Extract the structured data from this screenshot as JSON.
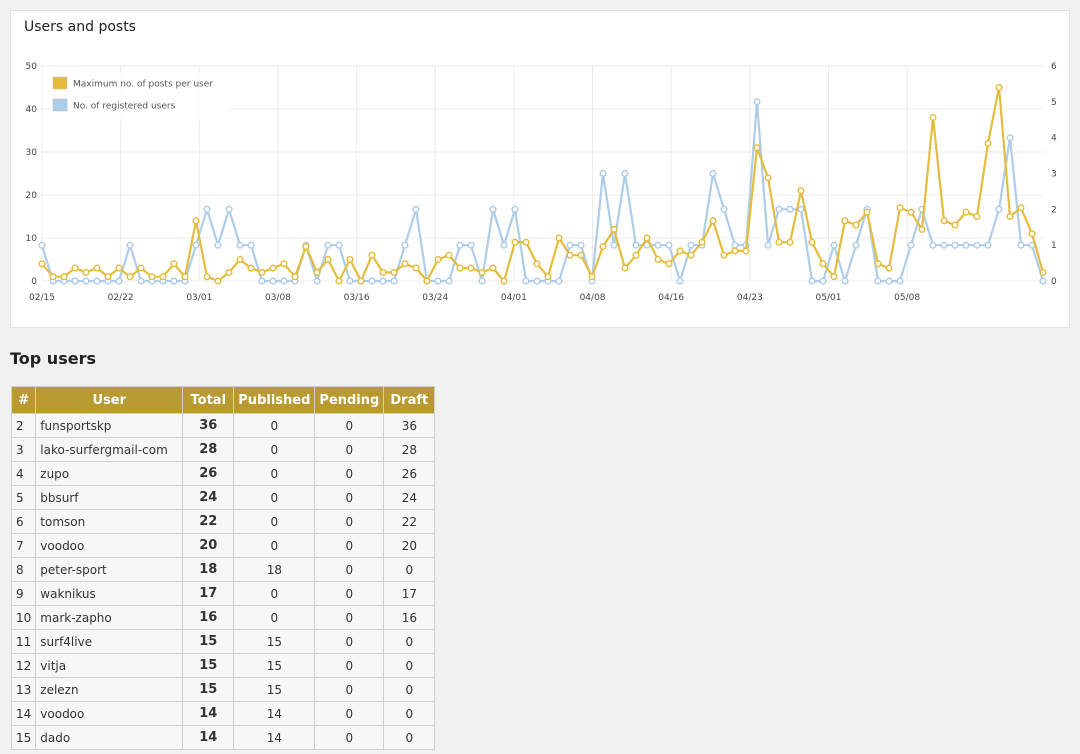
{
  "panel": {
    "title": "Users and posts"
  },
  "chart_data": {
    "type": "line",
    "title": "Users and posts",
    "x_tick_labels": [
      "02/15",
      "02/22",
      "03/01",
      "03/08",
      "03/16",
      "03/24",
      "04/01",
      "04/08",
      "04/16",
      "04/23",
      "05/01",
      "05/08"
    ],
    "y_left": {
      "ticks": [
        0,
        10,
        20,
        30,
        40,
        50
      ],
      "range": [
        0,
        50
      ]
    },
    "y_right": {
      "ticks": [
        0,
        1,
        2,
        3,
        4,
        5,
        6
      ],
      "range": [
        0,
        6
      ]
    },
    "legend_position": "top-left",
    "series": [
      {
        "name": "Maximum no. of posts per user",
        "color": "#e6bc3c",
        "axis": "left",
        "values": [
          4,
          1,
          1,
          3,
          2,
          3,
          1,
          3,
          1,
          3,
          1,
          1,
          4,
          1,
          14,
          1,
          0,
          2,
          5,
          3,
          2,
          3,
          4,
          1,
          8,
          2,
          5,
          0,
          5,
          0,
          6,
          2,
          2,
          4,
          3,
          0,
          5,
          6,
          3,
          3,
          2,
          3,
          0,
          9,
          9,
          4,
          1,
          10,
          6,
          6,
          1,
          8,
          12,
          3,
          6,
          10,
          5,
          4,
          7,
          6,
          9,
          14,
          6,
          7,
          7,
          31,
          24,
          9,
          9,
          21,
          9,
          4,
          1,
          14,
          13,
          16,
          4,
          3,
          17,
          16,
          12,
          38,
          14,
          13,
          16,
          15,
          32,
          45,
          15,
          17,
          11,
          2
        ]
      },
      {
        "name": "No. of registered users",
        "color": "#aecde8",
        "axis": "right",
        "values": [
          1,
          0,
          0,
          0,
          0,
          0,
          0,
          0,
          1,
          0,
          0,
          0,
          0,
          0,
          1,
          2,
          1,
          2,
          1,
          1,
          0,
          0,
          0,
          0,
          1,
          0,
          1,
          1,
          0,
          0,
          0,
          0,
          0,
          1,
          2,
          0,
          0,
          0,
          1,
          1,
          0,
          2,
          1,
          2,
          0,
          0,
          0,
          0,
          1,
          1,
          0,
          3,
          1,
          3,
          1,
          1,
          1,
          1,
          0,
          1,
          1,
          3,
          2,
          1,
          1,
          5,
          1,
          2,
          2,
          2,
          0,
          0,
          1,
          0,
          1,
          2,
          0,
          0,
          0,
          1,
          2,
          1,
          1,
          1,
          1,
          1,
          1,
          2,
          4,
          1,
          1,
          0
        ]
      }
    ]
  },
  "top_users": {
    "title": "Top users",
    "headers": [
      "#",
      "User",
      "Total",
      "Published",
      "Pending",
      "Draft"
    ],
    "rows": [
      {
        "rank": "2",
        "user": "funsportskp",
        "total": "36",
        "published": "0",
        "pending": "0",
        "draft": "36"
      },
      {
        "rank": "3",
        "user": "lako-surfergmail-com",
        "total": "28",
        "published": "0",
        "pending": "0",
        "draft": "28"
      },
      {
        "rank": "4",
        "user": "zupo",
        "total": "26",
        "published": "0",
        "pending": "0",
        "draft": "26"
      },
      {
        "rank": "5",
        "user": "bbsurf",
        "total": "24",
        "published": "0",
        "pending": "0",
        "draft": "24"
      },
      {
        "rank": "6",
        "user": "tomson",
        "total": "22",
        "published": "0",
        "pending": "0",
        "draft": "22"
      },
      {
        "rank": "7",
        "user": "voodoo",
        "total": "20",
        "published": "0",
        "pending": "0",
        "draft": "20"
      },
      {
        "rank": "8",
        "user": "peter-sport",
        "total": "18",
        "published": "18",
        "pending": "0",
        "draft": "0"
      },
      {
        "rank": "9",
        "user": "waknikus",
        "total": "17",
        "published": "0",
        "pending": "0",
        "draft": "17"
      },
      {
        "rank": "10",
        "user": "mark-zapho",
        "total": "16",
        "published": "0",
        "pending": "0",
        "draft": "16"
      },
      {
        "rank": "11",
        "user": "surf4live",
        "total": "15",
        "published": "15",
        "pending": "0",
        "draft": "0"
      },
      {
        "rank": "12",
        "user": "vitja",
        "total": "15",
        "published": "15",
        "pending": "0",
        "draft": "0"
      },
      {
        "rank": "13",
        "user": "zelezn",
        "total": "15",
        "published": "15",
        "pending": "0",
        "draft": "0"
      },
      {
        "rank": "14",
        "user": "voodoo",
        "total": "14",
        "published": "14",
        "pending": "0",
        "draft": "0"
      },
      {
        "rank": "15",
        "user": "dado",
        "total": "14",
        "published": "14",
        "pending": "0",
        "draft": "0"
      }
    ]
  }
}
